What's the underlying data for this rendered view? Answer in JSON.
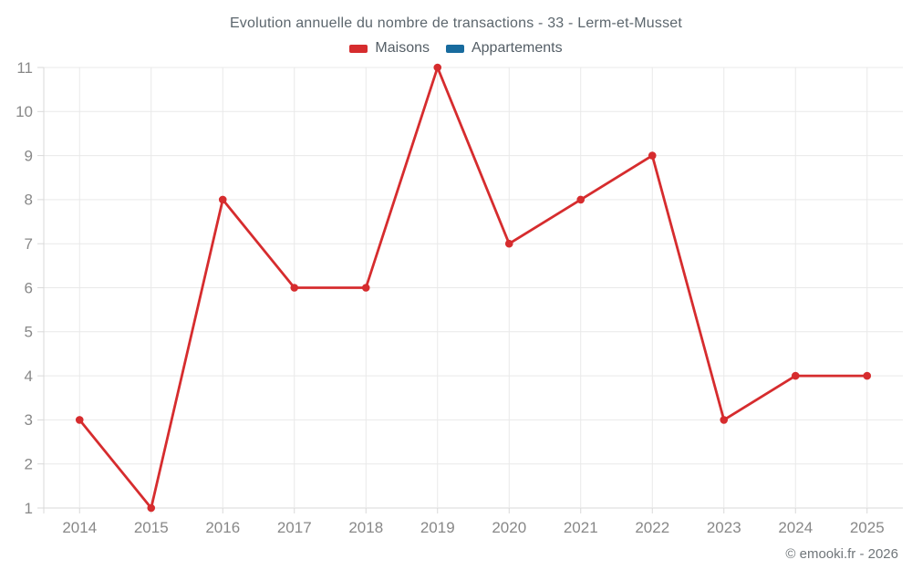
{
  "chart_data": {
    "type": "line",
    "title": "Evolution annuelle du nombre de transactions - 33 - Lerm-et-Musset",
    "categories": [
      "2014",
      "2015",
      "2016",
      "2017",
      "2018",
      "2019",
      "2020",
      "2021",
      "2022",
      "2023",
      "2024",
      "2025"
    ],
    "series": [
      {
        "name": "Maisons",
        "color": "#d62c2e",
        "values": [
          3,
          1,
          8,
          6,
          6,
          11,
          7,
          8,
          9,
          3,
          4,
          4
        ]
      },
      {
        "name": "Appartements",
        "color": "#186b9e",
        "values": []
      }
    ],
    "xlabel": "",
    "ylabel": "",
    "ylim": [
      1,
      11
    ],
    "y_tick_step": 1,
    "grid": true,
    "legend_position": "top"
  },
  "footer": {
    "copyright": "© emooki.fr - 2026"
  },
  "colors": {
    "background": "#ffffff",
    "grid": "#e9e9e9",
    "axis_border": "#d9d9d9",
    "tick_label": "#888888",
    "title_text": "#5c666d",
    "legend_text": "#545e66"
  }
}
